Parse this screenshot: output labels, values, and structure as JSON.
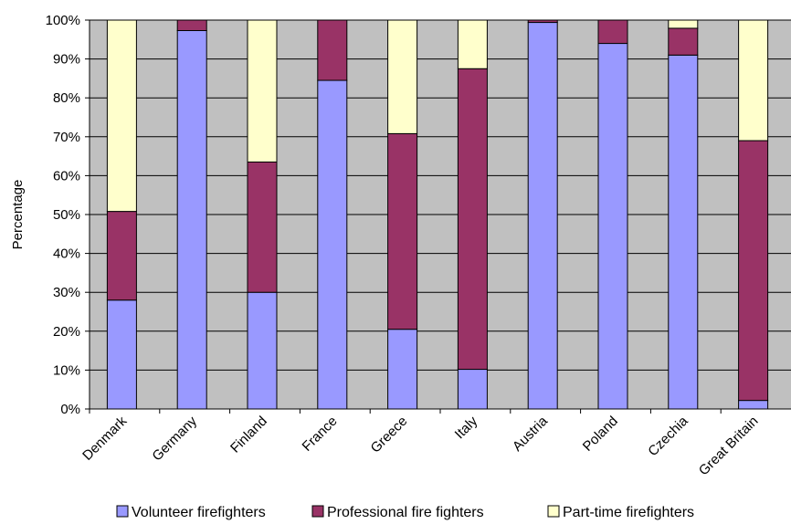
{
  "chart_data": {
    "type": "bar",
    "stacked": true,
    "ylabel": "Percentage",
    "xlabel": "",
    "ylim": [
      0,
      100
    ],
    "y_ticks": [
      "0%",
      "10%",
      "20%",
      "30%",
      "40%",
      "50%",
      "60%",
      "70%",
      "80%",
      "90%",
      "100%"
    ],
    "grid": true,
    "legend_position": "bottom",
    "plot_background": "#c0c0c0",
    "categories": [
      "Denmark",
      "Germany",
      "Finland",
      "France",
      "Greece",
      "Italy",
      "Austria",
      "Poland",
      "Czechia",
      "Great Britain"
    ],
    "series": [
      {
        "name": "Volunteer firefighters",
        "color": "#9999ff",
        "values": [
          28,
          97.3,
          30,
          84.5,
          20.5,
          10.2,
          99.4,
          94,
          91,
          2.2
        ]
      },
      {
        "name": "Professional fire fighters",
        "color": "#993366",
        "values": [
          22.8,
          2.7,
          33.5,
          15.5,
          50.3,
          77.3,
          0.6,
          6,
          6.9,
          66.8
        ]
      },
      {
        "name": "Part-time firefighters",
        "color": "#ffffcc",
        "values": [
          49.2,
          0,
          36.5,
          0,
          29.2,
          12.5,
          0,
          0,
          2.1,
          31
        ]
      }
    ]
  }
}
